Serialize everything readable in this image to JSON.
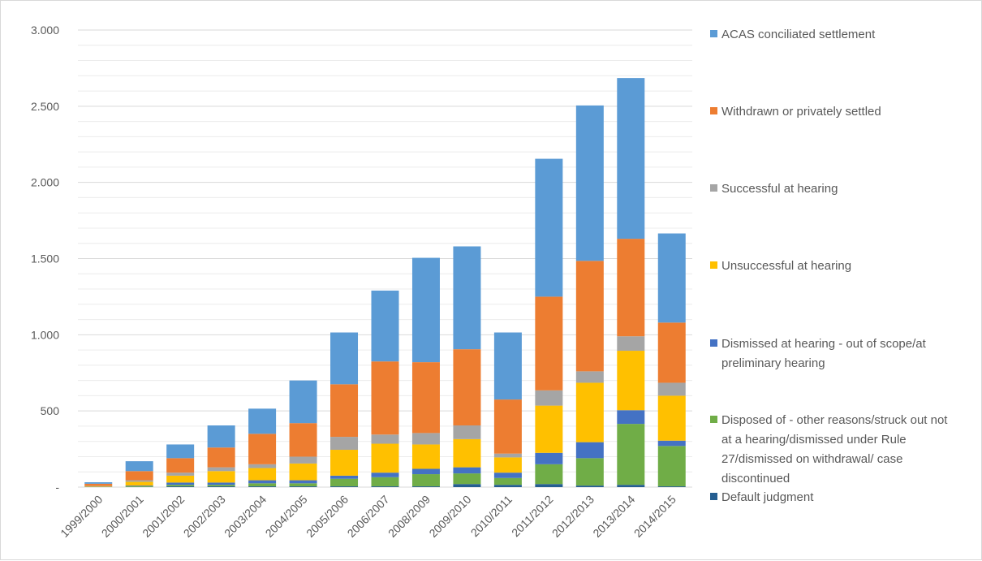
{
  "chart_data": {
    "type": "bar",
    "stacked": true,
    "categories": [
      "1999/2000",
      "2000/2001",
      "2001/2002",
      "2002/2003",
      "2003/2004",
      "2004/2005",
      "2005/2006",
      "2006/2007",
      "2008/2009",
      "2009/2010",
      "2010/2011",
      "2011/2012",
      "2012/2013",
      "2013/2014",
      "2014/2015"
    ],
    "ylim": [
      0,
      3000
    ],
    "yticks": [
      0,
      500,
      1000,
      1500,
      2000,
      2500,
      3000
    ],
    "ytick_labels": [
      "-",
      "500",
      "1.000",
      "1.500",
      "2.000",
      "2.500",
      "3.000"
    ],
    "grid": true,
    "legend_position": "right",
    "series": [
      {
        "name": "Default judgment",
        "color": "#255e91",
        "values": [
          0,
          0,
          5,
          5,
          5,
          5,
          5,
          5,
          5,
          20,
          15,
          20,
          10,
          15,
          5
        ]
      },
      {
        "name": "Disposed of - other reasons/struck out not at a hearing/dismissed under Rule 27/dismissed on withdrawal/ case discontinued",
        "color": "#70ad47",
        "values": [
          2,
          5,
          10,
          10,
          20,
          20,
          50,
          60,
          80,
          70,
          45,
          130,
          180,
          400,
          265
        ]
      },
      {
        "name": "Dismissed at hearing - out of scope/at preliminary hearing",
        "color": "#4472c4",
        "values": [
          1,
          5,
          15,
          15,
          20,
          20,
          20,
          30,
          35,
          40,
          35,
          75,
          105,
          90,
          35
        ]
      },
      {
        "name": "Unsuccessful at hearing",
        "color": "#ffc000",
        "values": [
          2,
          25,
          45,
          75,
          80,
          110,
          170,
          190,
          160,
          185,
          100,
          310,
          390,
          390,
          295
        ]
      },
      {
        "name": "Successful at hearing",
        "color": "#a5a5a5",
        "values": [
          2,
          10,
          20,
          25,
          25,
          45,
          85,
          60,
          75,
          90,
          25,
          100,
          75,
          95,
          85
        ]
      },
      {
        "name": "Withdrawn or privately settled",
        "color": "#ed7d31",
        "values": [
          15,
          60,
          95,
          130,
          200,
          220,
          345,
          480,
          465,
          500,
          355,
          615,
          725,
          640,
          395
        ]
      },
      {
        "name": "ACAS conciliated settlement",
        "color": "#5b9bd5",
        "values": [
          10,
          65,
          90,
          145,
          165,
          280,
          340,
          465,
          685,
          675,
          440,
          905,
          1020,
          1055,
          585
        ]
      }
    ],
    "legend_order": [
      [
        "ACAS conciliated settlement"
      ],
      [
        "Withdrawn or privately settled"
      ],
      [
        "Successful at hearing"
      ],
      [
        "Unsuccessful at hearing"
      ],
      [
        "Dismissed at hearing - out of scope/at",
        "preliminary hearing"
      ],
      [
        "Disposed of - other reasons/struck out not",
        "at a hearing/dismissed under Rule",
        "27/dismissed on withdrawal/ case",
        "discontinued"
      ],
      [
        "Default judgment"
      ]
    ]
  }
}
